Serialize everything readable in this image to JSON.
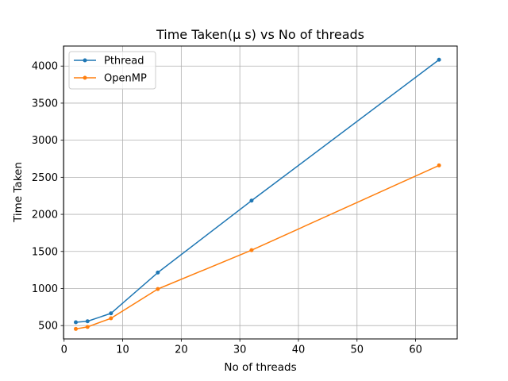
{
  "chart_data": {
    "type": "line",
    "title": "Time Taken(μ s) vs No of threads",
    "xlabel": "No of threads",
    "ylabel": "Time Taken",
    "x": [
      2,
      4,
      8,
      16,
      32,
      64
    ],
    "xlim": [
      -0.1,
      67.1
    ],
    "ylim": [
      320,
      4270
    ],
    "xticks": [
      0,
      10,
      20,
      30,
      40,
      50,
      60
    ],
    "yticks": [
      500,
      1000,
      1500,
      2000,
      2500,
      3000,
      3500,
      4000
    ],
    "grid": true,
    "legend_position": "top-left",
    "series": [
      {
        "name": "Pthread",
        "color": "#1f77b4",
        "values": [
          545,
          558,
          665,
          1215,
          2185,
          4085
        ]
      },
      {
        "name": "OpenMP",
        "color": "#ff7f0e",
        "values": [
          455,
          482,
          598,
          993,
          1517,
          2660
        ]
      }
    ]
  }
}
